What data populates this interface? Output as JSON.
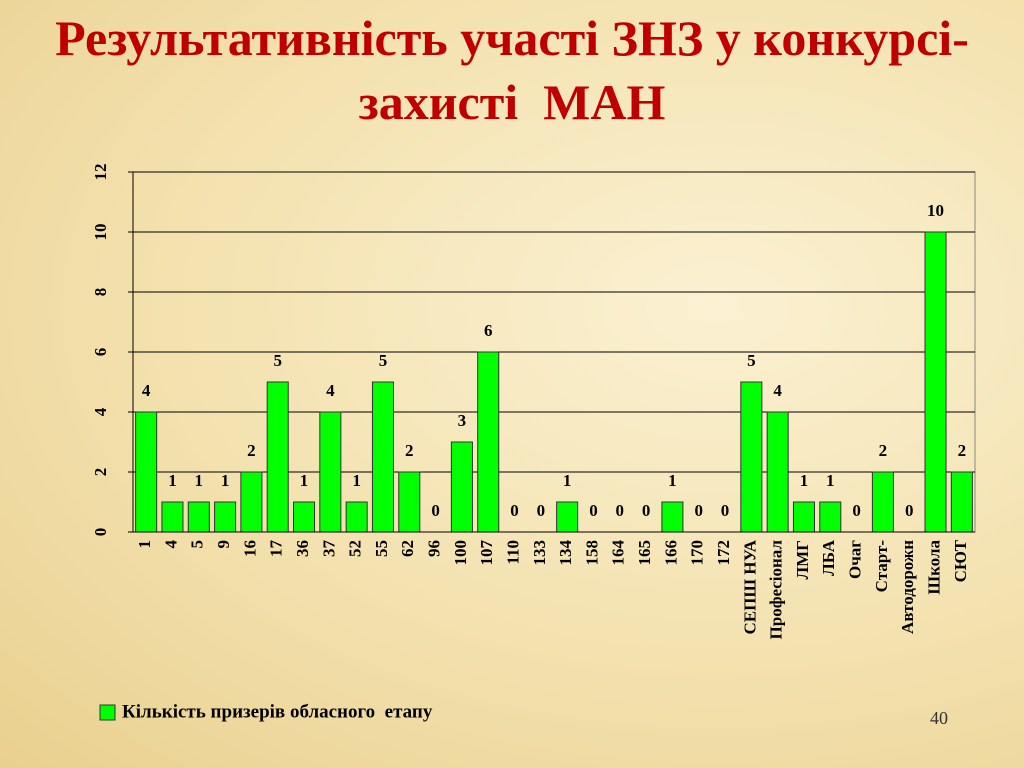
{
  "chart_data": {
    "type": "bar",
    "title": "Результативність участі ЗНЗ у конкурсі-захисті  МАН",
    "categories": [
      "1",
      "4",
      "5",
      "9",
      "16",
      "17",
      "36",
      "37",
      "52",
      "55",
      "62",
      "96",
      "100",
      "107",
      "110",
      "133",
      "134",
      "158",
      "164",
      "165",
      "166",
      "170",
      "172",
      "СЕПШ НУА",
      "Професіонал",
      "ЛМГ",
      "ЛБА",
      "Очаг",
      "Старт-",
      "Автодорожн",
      "Школа",
      "СЮТ"
    ],
    "series": [
      {
        "name": "Кількість призерів обласного  етапу",
        "color": "#00ff00",
        "values": [
          4,
          1,
          1,
          1,
          2,
          5,
          1,
          4,
          1,
          5,
          2,
          0,
          3,
          6,
          0,
          0,
          1,
          0,
          0,
          0,
          1,
          0,
          0,
          5,
          4,
          1,
          1,
          0,
          2,
          0,
          10,
          2
        ]
      }
    ],
    "ylim": [
      0,
      12
    ],
    "yticks": [
      0,
      2,
      4,
      6,
      8,
      10,
      12
    ],
    "grid": true,
    "legend": "bottom-left"
  },
  "slide_number": "40"
}
